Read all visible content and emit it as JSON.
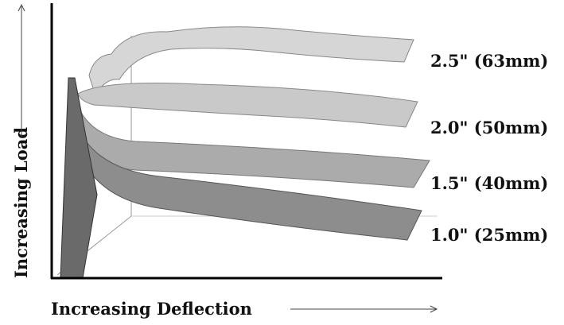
{
  "y_axis_label": "Increasing Load",
  "x_axis_label": "Increasing Deflection",
  "curves": [
    {
      "label": "2.5\" (63mm)"
    },
    {
      "label": "2.0\" (50mm)"
    },
    {
      "label": "1.5\" (40mm)"
    },
    {
      "label": "1.0\" (25mm)"
    }
  ]
}
